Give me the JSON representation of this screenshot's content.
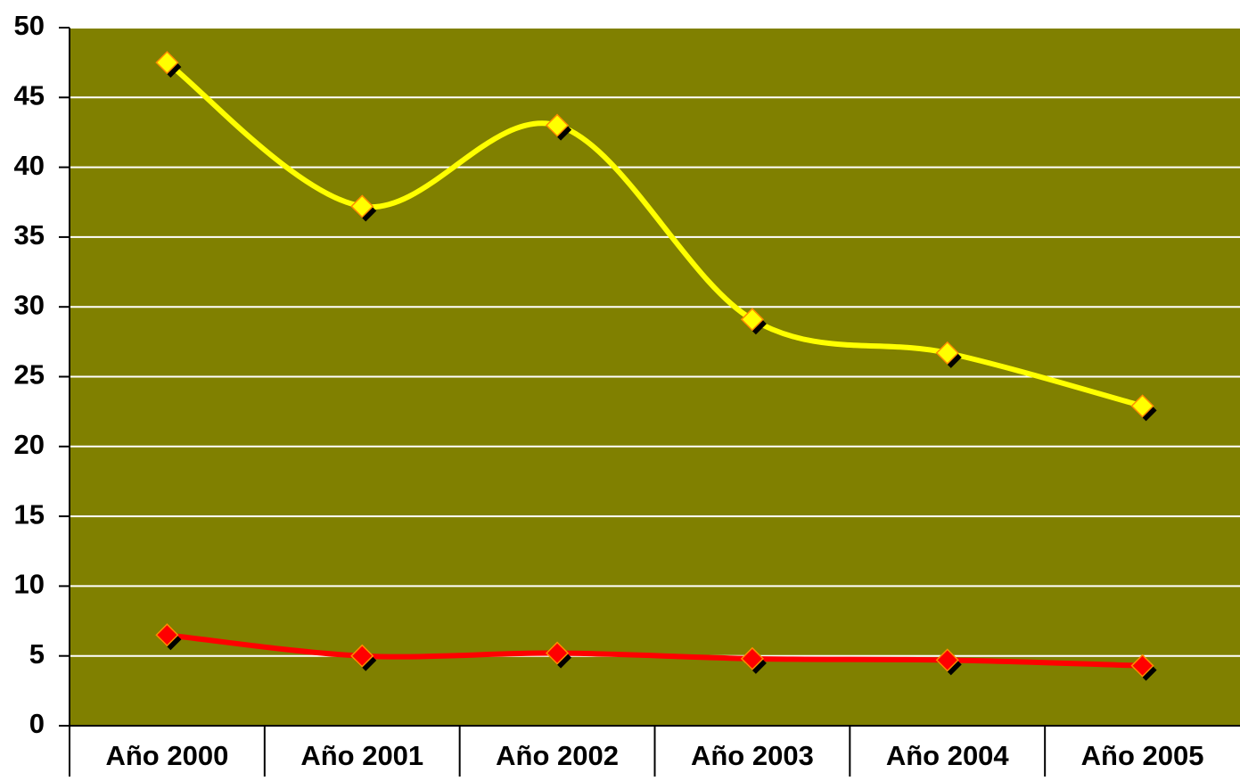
{
  "chart_data": {
    "type": "line",
    "smooth": true,
    "categories": [
      "Año 2000",
      "Año 2001",
      "Año 2002",
      "Año 2003",
      "Año 2004",
      "Año 2005"
    ],
    "series": [
      {
        "color": "#ffff00",
        "marker_color": "#ffff00",
        "values": [
          47.5,
          37.2,
          43.0,
          29.1,
          26.7,
          22.9
        ]
      },
      {
        "color": "#ff0000",
        "marker_color": "#ff0000",
        "values": [
          6.5,
          5.0,
          5.2,
          4.8,
          4.7,
          4.3
        ]
      }
    ],
    "ylim": [
      0,
      50
    ],
    "yticks": [
      0,
      5,
      10,
      15,
      20,
      25,
      30,
      35,
      40,
      45,
      50
    ],
    "grid": true,
    "plot_background": "#808000"
  }
}
